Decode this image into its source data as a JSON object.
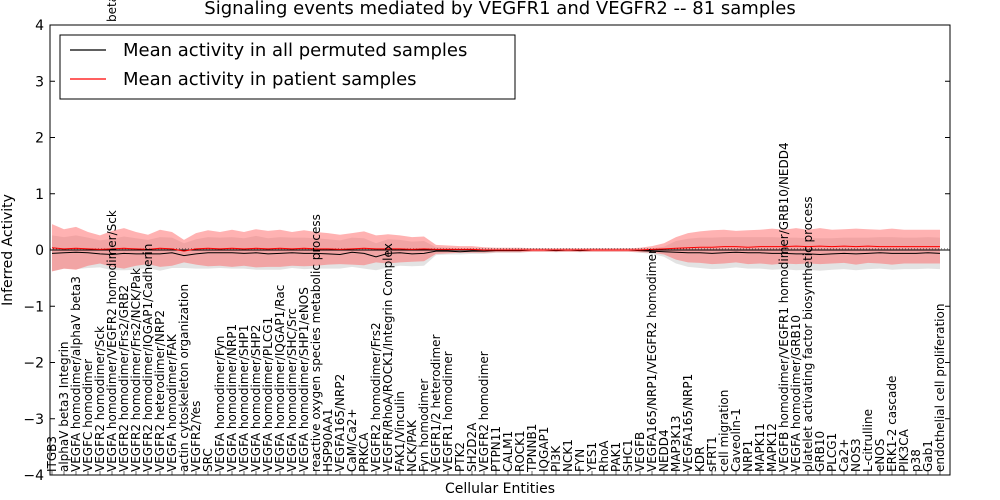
{
  "chart_data": {
    "type": "line",
    "title": "Signaling events mediated by VEGFR1 and VEGFR2 -- 81 samples",
    "xlabel": "Cellular Entities",
    "ylabel": "Inferred Activity",
    "ylim": [
      -4,
      4
    ],
    "yticks": [
      "4",
      "3",
      "2",
      "1",
      "0",
      "−1",
      "−2",
      "−3",
      "−4"
    ],
    "legend": {
      "position": "top-left",
      "entries": [
        {
          "label": "Mean activity in all permuted samples",
          "color": "#000000"
        },
        {
          "label": "Mean activity in patient samples",
          "color": "#ff0000"
        }
      ]
    },
    "categories": [
      "ITGB3",
      "alphaV beta3 Integrin",
      "VEGFA homodimer/alphaV beta3",
      "VEGFC homodimer",
      "VEGFR2 homodimer/Sck",
      "VEGFA homodimer/VEGFR2 homodimer/Sck",
      "VEGFR2 homodimer/Frs2/GRB2",
      "VEGFR2 homodimer/Frs2/NCK/Pak",
      "VEGFR2 homodimer/IQGAP1/Cadherin",
      "VEGFR2 heterodimer/NRP2",
      "VEGFA homodimer/FAK",
      "actin cytoskeleton organization",
      "VEGFR2/Yes",
      "SRC",
      "VEGFA homodimer/Fyn",
      "VEGFA homodimer/NRP1",
      "VEGFA homodimer/SHP1",
      "VEGFA homodimer/SHP2",
      "VEGFA homodimer/PLCG1",
      "VEGFA homodimer/IQGAP1/Rac",
      "VEGFA homodimer/SHC/Src",
      "VEGFA homodimer/SHP1/eNOS",
      "reactive oxygen species metabolic process",
      "HSP90AA1",
      "VEGFA165/NRP2",
      "CaM/Ca2+",
      "PRKCA",
      "VEGFR2 homodimer/Frs2",
      "VEGFR/RhoA/ROCK1/Integrin Complex",
      "FAK1/Vinculin",
      "NCK/PAK",
      "Fyn homodimer",
      "VEGFR1/2 heterodimer",
      "VEGFR1 homodimer",
      "PTK2",
      "SH2D2A",
      "VEGFR2 homodimer",
      "PTPN11",
      "CALM1",
      "ROCK1",
      "TPNNB1",
      "IQGAP1",
      "PI3K",
      "NCK1",
      "FYN",
      "YES1",
      "RhoA",
      "PAK1",
      "SHC1",
      "VEGFB",
      "VEGFA165/NRP1/VEGFR2 homodimer",
      "NEDD4",
      "MAP3K13",
      "VEGFA165/NRP1",
      "KDR",
      "sFRT1",
      "cell migration",
      "Caveolin-1",
      "NRP1",
      "MAPK11",
      "MAPK12",
      "VEGFB homodimer/VEGFR1 homodimer/GRB10/NEDD4",
      "VEGFA homodimer/GRB10",
      "platelet activating factor biosynthetic process",
      "GRB10",
      "PLCG1",
      "Ca2+",
      "NOS3",
      "L-citrulline",
      "eNOS",
      "ERK1-2 cascade",
      "PIK3CA",
      "p38",
      "Gab1",
      "endothelial cell proliferation"
    ],
    "series": [
      {
        "name": "Mean activity in all permuted samples",
        "color": "#000000",
        "values": [
          -0.06,
          -0.05,
          -0.04,
          -0.05,
          -0.07,
          -0.08,
          -0.06,
          -0.07,
          -0.07,
          -0.07,
          -0.05,
          -0.1,
          -0.07,
          -0.05,
          -0.05,
          -0.05,
          -0.06,
          -0.05,
          -0.07,
          -0.06,
          -0.05,
          -0.06,
          -0.06,
          -0.07,
          -0.08,
          -0.04,
          -0.06,
          -0.12,
          -0.06,
          -0.05,
          -0.07,
          -0.06,
          -0.02,
          -0.02,
          -0.03,
          -0.02,
          -0.02,
          -0.01,
          -0.01,
          -0.01,
          0.0,
          0.0,
          -0.01,
          0.0,
          -0.01,
          0.0,
          0.0,
          0.0,
          0.0,
          -0.01,
          -0.02,
          -0.03,
          -0.04,
          -0.05,
          -0.05,
          -0.06,
          -0.05,
          -0.04,
          -0.05,
          -0.05,
          -0.06,
          -0.06,
          -0.07,
          -0.07,
          -0.08,
          -0.07,
          -0.06,
          -0.07,
          -0.06,
          -0.05,
          -0.06,
          -0.06,
          -0.06,
          -0.05,
          -0.06
        ]
      },
      {
        "name": "Mean activity in patient samples",
        "color": "#ff0000",
        "values": [
          0.04,
          0.02,
          0.03,
          0.02,
          0.01,
          0.02,
          0.03,
          0.02,
          0.01,
          0.03,
          0.02,
          -0.02,
          0.02,
          0.03,
          0.02,
          0.03,
          0.02,
          0.03,
          0.02,
          0.03,
          0.02,
          0.03,
          0.02,
          0.02,
          0.01,
          0.02,
          0.03,
          0.02,
          0.02,
          0.02,
          0.01,
          0.02,
          0.01,
          0.01,
          0.01,
          0.01,
          0.0,
          0.0,
          0.0,
          0.0,
          0.0,
          0.0,
          0.0,
          0.0,
          0.0,
          0.0,
          0.0,
          0.0,
          0.0,
          0.0,
          0.01,
          0.02,
          0.03,
          0.04,
          0.05,
          0.05,
          0.06,
          0.06,
          0.05,
          0.06,
          0.06,
          0.06,
          0.07,
          0.06,
          0.07,
          0.06,
          0.07,
          0.06,
          0.07,
          0.06,
          0.06,
          0.06,
          0.06,
          0.06,
          0.06
        ]
      }
    ],
    "band_patient": [
      0.42,
      0.35,
      0.38,
      0.3,
      0.25,
      0.32,
      0.36,
      0.3,
      0.26,
      0.33,
      0.3,
      0.2,
      0.28,
      0.32,
      0.3,
      0.33,
      0.3,
      0.34,
      0.32,
      0.33,
      0.3,
      0.32,
      0.3,
      0.28,
      0.26,
      0.28,
      0.3,
      0.24,
      0.26,
      0.24,
      0.22,
      0.22,
      0.08,
      0.07,
      0.06,
      0.06,
      0.05,
      0.04,
      0.04,
      0.04,
      0.03,
      0.03,
      0.03,
      0.03,
      0.03,
      0.03,
      0.03,
      0.03,
      0.03,
      0.04,
      0.06,
      0.1,
      0.2,
      0.26,
      0.28,
      0.3,
      0.3,
      0.28,
      0.3,
      0.3,
      0.32,
      0.3,
      0.32,
      0.3,
      0.32,
      0.3,
      0.3,
      0.32,
      0.3,
      0.3,
      0.32,
      0.3,
      0.3,
      0.3,
      0.3
    ],
    "band_permuted": [
      0.32,
      0.28,
      0.3,
      0.27,
      0.24,
      0.28,
      0.3,
      0.28,
      0.25,
      0.3,
      0.27,
      0.22,
      0.26,
      0.28,
      0.27,
      0.28,
      0.27,
      0.3,
      0.28,
      0.29,
      0.27,
      0.28,
      0.27,
      0.26,
      0.25,
      0.26,
      0.27,
      0.24,
      0.25,
      0.23,
      0.22,
      0.22,
      0.07,
      0.06,
      0.05,
      0.05,
      0.05,
      0.04,
      0.04,
      0.04,
      0.03,
      0.03,
      0.03,
      0.03,
      0.03,
      0.03,
      0.03,
      0.03,
      0.03,
      0.04,
      0.05,
      0.09,
      0.2,
      0.25,
      0.27,
      0.28,
      0.28,
      0.27,
      0.28,
      0.28,
      0.29,
      0.28,
      0.29,
      0.28,
      0.29,
      0.28,
      0.28,
      0.29,
      0.28,
      0.28,
      0.29,
      0.28,
      0.28,
      0.28,
      0.28
    ],
    "top_clipped_label": "beta-catenin"
  }
}
